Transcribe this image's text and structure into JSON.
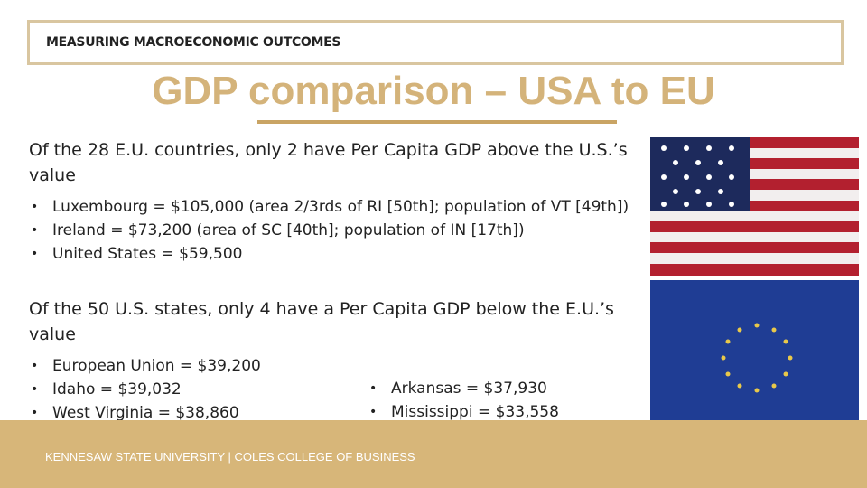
{
  "header": {
    "label": "MEASURING MACROECONOMIC OUTCOMES"
  },
  "title": "GDP comparison – USA to EU",
  "sections": [
    {
      "heading": "Of the 28 E.U. countries, only 2 have Per Capita GDP above the U.S.’s value",
      "bullets": [
        "Luxembourg = $105,000 (area 2/3rds of RI [50th]; population of VT [49th])",
        "Ireland = $73,200 (area of SC [40th]; population of IN [17th])",
        "United States = $59,500"
      ]
    },
    {
      "heading": "Of the 50 U.S. states, only 4 have a Per Capita GDP below the E.U.’s value",
      "bullets": [
        "European Union = $39,200",
        "Idaho = $39,032",
        "West Virginia = $38,860"
      ],
      "bullets_right": [
        "Arkansas = $37,930",
        "Mississippi = $33,558"
      ]
    }
  ],
  "footer": "KENNESAW STATE UNIVERSITY | COLES COLLEGE OF BUSINESS"
}
